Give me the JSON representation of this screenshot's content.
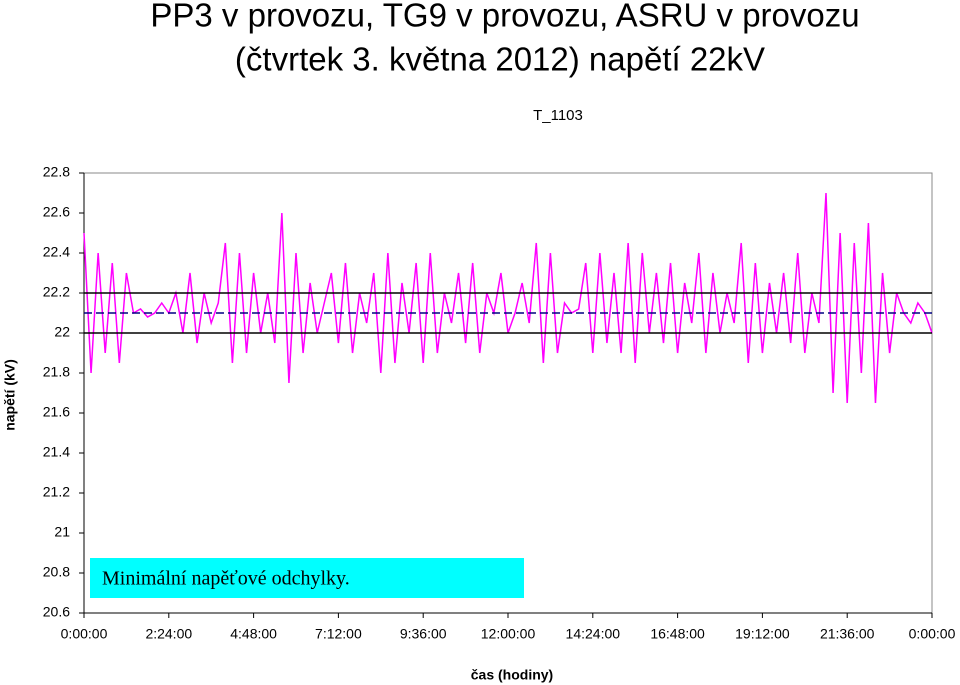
{
  "chart_data": {
    "type": "line",
    "title_lines": [
      "PP3 v provozu, TG9 v provozu, ASRU v provozu",
      "(čtvrtek 3. května 2012) napětí 22kV"
    ],
    "subtitle": "T_1103",
    "ylabel": "napětí (kV)",
    "xlabel": "čas (hodiny)",
    "annotation": "Minimální napěťové odchylky.",
    "xlim": [
      0,
      24
    ],
    "xticks": [
      {
        "value": 0,
        "label": "0:00:00"
      },
      {
        "value": 2.4,
        "label": "2:24:00"
      },
      {
        "value": 4.8,
        "label": "4:48:00"
      },
      {
        "value": 7.2,
        "label": "7:12:00"
      },
      {
        "value": 9.6,
        "label": "9:36:00"
      },
      {
        "value": 12,
        "label": "12:00:00"
      },
      {
        "value": 14.4,
        "label": "14:24:00"
      },
      {
        "value": 16.8,
        "label": "16:48:00"
      },
      {
        "value": 19.2,
        "label": "19:12:00"
      },
      {
        "value": 21.6,
        "label": "21:36:00"
      },
      {
        "value": 24,
        "label": "0:00:00"
      }
    ],
    "ylim": [
      20.6,
      22.8
    ],
    "yticks": [
      20.6,
      20.8,
      21,
      21.2,
      21.4,
      21.6,
      21.8,
      22,
      22.2,
      22.4,
      22.6,
      22.8
    ],
    "reference_lines": [
      {
        "value": 22.2,
        "color": "#000000"
      },
      {
        "value": 22.0,
        "color": "#000000"
      },
      {
        "value": 22.1,
        "color": "#000080",
        "dashed": true
      }
    ],
    "series": [
      {
        "color": "#ff00ff",
        "x": [
          0,
          0.2,
          0.4,
          0.6,
          0.8,
          1,
          1.2,
          1.4,
          1.6,
          1.8,
          2,
          2.2,
          2.4,
          2.6,
          2.8,
          3,
          3.2,
          3.4,
          3.6,
          3.8,
          4,
          4.2,
          4.4,
          4.6,
          4.8,
          5,
          5.2,
          5.4,
          5.6,
          5.8,
          6,
          6.2,
          6.4,
          6.6,
          6.8,
          7,
          7.2,
          7.4,
          7.6,
          7.8,
          8,
          8.2,
          8.4,
          8.6,
          8.8,
          9,
          9.2,
          9.4,
          9.6,
          9.8,
          10,
          10.2,
          10.4,
          10.6,
          10.8,
          11,
          11.2,
          11.4,
          11.6,
          11.8,
          12,
          12.2,
          12.4,
          12.6,
          12.8,
          13,
          13.2,
          13.4,
          13.6,
          13.8,
          14,
          14.2,
          14.4,
          14.6,
          14.8,
          15,
          15.2,
          15.4,
          15.6,
          15.8,
          16,
          16.2,
          16.4,
          16.6,
          16.8,
          17,
          17.2,
          17.4,
          17.6,
          17.8,
          18,
          18.2,
          18.4,
          18.6,
          18.8,
          19,
          19.2,
          19.4,
          19.6,
          19.8,
          20,
          20.2,
          20.4,
          20.6,
          20.8,
          21,
          21.2,
          21.4,
          21.6,
          21.8,
          22,
          22.2,
          22.4,
          22.6,
          22.8,
          23,
          23.2,
          23.4,
          23.6,
          23.8,
          24
        ],
        "values": [
          22.5,
          21.8,
          22.4,
          21.9,
          22.35,
          21.85,
          22.3,
          22.1,
          22.12,
          22.08,
          22.1,
          22.15,
          22.1,
          22.2,
          22.0,
          22.3,
          21.95,
          22.2,
          22.05,
          22.15,
          22.45,
          21.85,
          22.4,
          21.9,
          22.3,
          22.0,
          22.2,
          21.95,
          22.6,
          21.75,
          22.4,
          21.9,
          22.25,
          22.0,
          22.15,
          22.3,
          21.95,
          22.35,
          21.9,
          22.2,
          22.05,
          22.3,
          21.8,
          22.4,
          21.85,
          22.25,
          22.0,
          22.35,
          21.85,
          22.4,
          21.9,
          22.2,
          22.05,
          22.3,
          21.95,
          22.35,
          21.9,
          22.2,
          22.1,
          22.3,
          22.0,
          22.1,
          22.25,
          22.05,
          22.45,
          21.85,
          22.4,
          21.9,
          22.15,
          22.1,
          22.12,
          22.35,
          21.9,
          22.4,
          21.95,
          22.3,
          21.9,
          22.45,
          21.85,
          22.4,
          22.0,
          22.3,
          21.95,
          22.35,
          21.9,
          22.25,
          22.05,
          22.4,
          21.9,
          22.3,
          22.0,
          22.2,
          22.05,
          22.45,
          21.85,
          22.35,
          21.9,
          22.25,
          22.0,
          22.3,
          21.95,
          22.4,
          21.9,
          22.2,
          22.05,
          22.7,
          21.7,
          22.5,
          21.65,
          22.45,
          21.8,
          22.55,
          21.65,
          22.3,
          21.9,
          22.2,
          22.1,
          22.05,
          22.15,
          22.1,
          22.0
        ]
      }
    ]
  }
}
